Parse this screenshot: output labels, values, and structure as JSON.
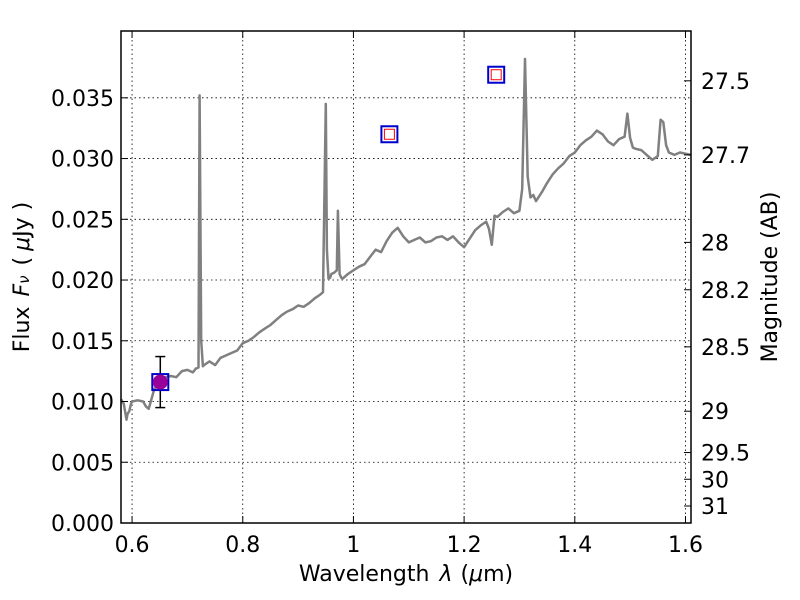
{
  "chart_data": {
    "type": "line",
    "title": "",
    "xlabel": "Wavelength",
    "xlabel_symbol": "λ",
    "xlabel_unit_open": "(",
    "xlabel_unit_mu": "μ",
    "xlabel_unit_rest": "m)",
    "ylabel": "Flux",
    "ylabel_symbol": "F",
    "ylabel_sub": "ν",
    "ylabel_unit_open": "(",
    "ylabel_unit_mu": "μ",
    "ylabel_unit_rest": "Jy )",
    "y2label": "Magnitude (AB)",
    "xlim": [
      0.58,
      1.61
    ],
    "ylim": [
      0.0,
      0.0405
    ],
    "grid": true,
    "x_ticks": [
      {
        "value": 0.6,
        "label": "0.6"
      },
      {
        "value": 0.8,
        "label": "0.8"
      },
      {
        "value": 1.0,
        "label": "1"
      },
      {
        "value": 1.2,
        "label": "1.2"
      },
      {
        "value": 1.4,
        "label": "1.4"
      },
      {
        "value": 1.6,
        "label": "1.6"
      }
    ],
    "y_ticks": [
      {
        "value": 0.0,
        "label": "0.000"
      },
      {
        "value": 0.005,
        "label": "0.005"
      },
      {
        "value": 0.01,
        "label": "0.010"
      },
      {
        "value": 0.015,
        "label": "0.015"
      },
      {
        "value": 0.02,
        "label": "0.020"
      },
      {
        "value": 0.025,
        "label": "0.025"
      },
      {
        "value": 0.03,
        "label": "0.030"
      },
      {
        "value": 0.035,
        "label": "0.035"
      }
    ],
    "y2_ticks": [
      {
        "flux": 0.0364,
        "label": "27.5"
      },
      {
        "flux": 0.0303,
        "label": "27.7"
      },
      {
        "flux": 0.0231,
        "label": "28"
      },
      {
        "flux": 0.0192,
        "label": "28.2"
      },
      {
        "flux": 0.0145,
        "label": "28.5"
      },
      {
        "flux": 0.0092,
        "label": "29"
      },
      {
        "flux": 0.0058,
        "label": "29.5"
      },
      {
        "flux": 0.0036,
        "label": "30"
      },
      {
        "flux": 0.0014,
        "label": "31"
      }
    ],
    "series": [
      {
        "color": "#808080",
        "x": [
          0.58,
          0.585,
          0.59,
          0.592,
          0.595,
          0.598,
          0.6,
          0.61,
          0.62,
          0.625,
          0.63,
          0.64,
          0.65,
          0.66,
          0.67,
          0.68,
          0.69,
          0.7,
          0.71,
          0.715,
          0.72,
          0.722,
          0.725,
          0.728,
          0.73,
          0.74,
          0.75,
          0.76,
          0.77,
          0.78,
          0.79,
          0.8,
          0.81,
          0.82,
          0.83,
          0.84,
          0.85,
          0.86,
          0.87,
          0.88,
          0.89,
          0.9,
          0.91,
          0.92,
          0.93,
          0.94,
          0.945,
          0.95,
          0.952,
          0.955,
          0.958,
          0.96,
          0.965,
          0.97,
          0.972,
          0.975,
          0.978,
          0.98,
          0.99,
          1.0,
          1.01,
          1.02,
          1.03,
          1.04,
          1.05,
          1.06,
          1.07,
          1.08,
          1.09,
          1.1,
          1.11,
          1.12,
          1.13,
          1.14,
          1.15,
          1.16,
          1.17,
          1.18,
          1.19,
          1.2,
          1.21,
          1.22,
          1.23,
          1.24,
          1.245,
          1.25,
          1.255,
          1.26,
          1.265,
          1.27,
          1.28,
          1.29,
          1.3,
          1.305,
          1.31,
          1.315,
          1.32,
          1.325,
          1.33,
          1.34,
          1.35,
          1.36,
          1.37,
          1.38,
          1.39,
          1.4,
          1.41,
          1.42,
          1.43,
          1.44,
          1.45,
          1.46,
          1.47,
          1.48,
          1.49,
          1.495,
          1.5,
          1.505,
          1.51,
          1.52,
          1.53,
          1.54,
          1.55,
          1.555,
          1.56,
          1.565,
          1.57,
          1.58,
          1.59,
          1.6,
          1.61
        ],
        "y": [
          0.0102,
          0.0098,
          0.0085,
          0.009,
          0.0092,
          0.0098,
          0.01,
          0.0101,
          0.01,
          0.0096,
          0.0094,
          0.011,
          0.0116,
          0.012,
          0.0121,
          0.012,
          0.0125,
          0.0126,
          0.0124,
          0.0127,
          0.0128,
          0.0352,
          0.015,
          0.0129,
          0.013,
          0.0133,
          0.013,
          0.0136,
          0.0138,
          0.014,
          0.0142,
          0.0148,
          0.015,
          0.0153,
          0.0157,
          0.016,
          0.0163,
          0.0167,
          0.0171,
          0.0174,
          0.0176,
          0.0179,
          0.0178,
          0.0181,
          0.0185,
          0.0188,
          0.019,
          0.0345,
          0.0225,
          0.0201,
          0.0202,
          0.0205,
          0.0206,
          0.0208,
          0.0257,
          0.0205,
          0.0202,
          0.0201,
          0.0205,
          0.0208,
          0.0211,
          0.0213,
          0.0219,
          0.0225,
          0.0223,
          0.0232,
          0.0239,
          0.0243,
          0.0236,
          0.0231,
          0.0233,
          0.0235,
          0.0231,
          0.0232,
          0.0235,
          0.0236,
          0.0233,
          0.0236,
          0.0231,
          0.0227,
          0.0234,
          0.0241,
          0.0245,
          0.0248,
          0.0242,
          0.0229,
          0.0253,
          0.0252,
          0.0254,
          0.0256,
          0.0259,
          0.0255,
          0.0257,
          0.0275,
          0.0382,
          0.0285,
          0.0268,
          0.027,
          0.0265,
          0.0272,
          0.028,
          0.0287,
          0.0292,
          0.0296,
          0.0302,
          0.0305,
          0.0311,
          0.0315,
          0.0318,
          0.0323,
          0.032,
          0.0314,
          0.0311,
          0.0316,
          0.0318,
          0.0337,
          0.0317,
          0.0309,
          0.0308,
          0.0307,
          0.0303,
          0.0299,
          0.0302,
          0.0332,
          0.033,
          0.0311,
          0.0305,
          0.0303,
          0.0305,
          0.0304,
          0.0303
        ]
      }
    ],
    "points": [
      {
        "x": 0.651,
        "y": 0.0116,
        "err": 0.0021,
        "marker": "circle",
        "color": "#990099",
        "edge": "#0000cc"
      },
      {
        "x": 1.065,
        "y": 0.032,
        "marker": "square",
        "color": "#ffffff",
        "inner": "#ff0000",
        "edge": "#0000cc"
      },
      {
        "x": 1.258,
        "y": 0.0369,
        "marker": "square",
        "color": "#ffffff",
        "inner": "#ff0000",
        "edge": "#0000cc"
      }
    ]
  }
}
